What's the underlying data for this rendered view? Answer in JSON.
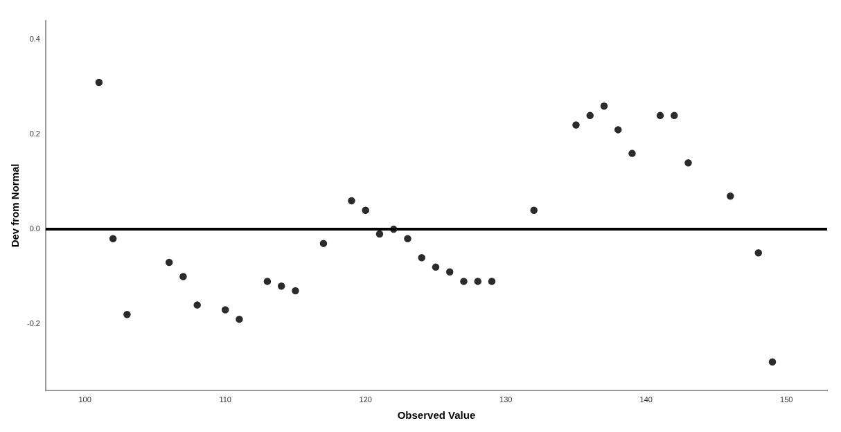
{
  "chart_data": {
    "type": "scatter",
    "xlabel": "Observed Value",
    "ylabel": "Dev from Normal",
    "x": [
      101,
      102,
      103,
      106,
      107,
      108,
      110,
      111,
      113,
      114,
      115,
      117,
      119,
      120,
      121,
      122,
      123,
      124,
      125,
      126,
      127,
      128,
      129,
      132,
      135,
      136,
      137,
      138,
      139,
      141,
      142,
      143,
      146,
      148,
      149
    ],
    "series": [
      {
        "color": "#2b2b2b",
        "values": [
          0.31,
          -0.02,
          -0.18,
          -0.07,
          -0.1,
          -0.16,
          -0.17,
          -0.19,
          -0.11,
          -0.12,
          -0.13,
          -0.03,
          0.06,
          0.04,
          -0.01,
          0,
          -0.02,
          -0.06,
          -0.08,
          -0.09,
          -0.11,
          -0.11,
          -0.11,
          0.04,
          0.22,
          0.24,
          0.26,
          0.21,
          0.16,
          0.24,
          0.24,
          0.14,
          0.07,
          -0.05,
          -0.28
        ]
      }
    ],
    "marker": "circle",
    "grid": false,
    "legend": false,
    "xlim": [
      97.2,
      152.9
    ],
    "xticks": [
      100,
      110,
      120,
      130,
      140,
      150
    ],
    "ylim": [
      -0.34,
      0.44
    ],
    "yticks": [
      {
        "value": -0.2,
        "label": "-0.2"
      },
      {
        "value": 0,
        "label": "0.0"
      },
      {
        "value": 0.2,
        "label": "0.2"
      },
      {
        "value": 0.4,
        "label": "0.4"
      }
    ],
    "ref_lines": [
      {
        "axis": "y",
        "value": 0,
        "color": "#000000"
      }
    ]
  }
}
